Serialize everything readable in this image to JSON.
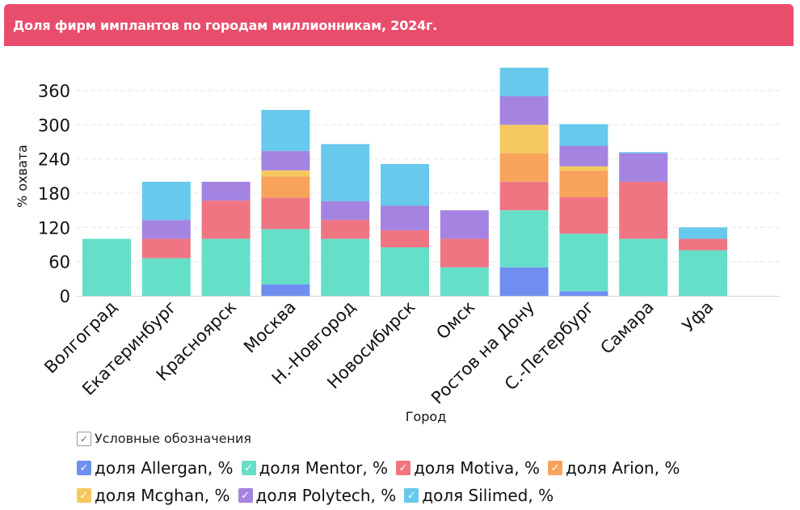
{
  "header": {
    "title": "Доля фирм имплантов по городам миллионникам, 2024г."
  },
  "legend": {
    "title": "Условные обозначения",
    "check": "✓"
  },
  "chart_data": {
    "type": "bar",
    "stacked": true,
    "xlabel": "Город",
    "ylabel": "% охвата",
    "ylim": [
      0,
      400
    ],
    "yticks": [
      0,
      60,
      120,
      180,
      240,
      300,
      360
    ],
    "grid": true,
    "legend_position": "bottom",
    "categories": [
      "Волгоград",
      "Екатеринбург",
      "Красноярск",
      "Москва",
      "Н.-Новгород",
      "Новосибирск",
      "Омск",
      "Ростов на Дону",
      "С.-Петербург",
      "Самара",
      "Уфа"
    ],
    "series": [
      {
        "name": "доля Allergan, %",
        "color": "#6f8ef0",
        "values": [
          0,
          0,
          0,
          20,
          0,
          0,
          0,
          50,
          8,
          0,
          0
        ]
      },
      {
        "name": "доля Mentor, %",
        "color": "#66dfc9",
        "values": [
          100,
          66,
          100,
          97,
          100,
          85,
          50,
          100,
          101,
          100,
          80
        ]
      },
      {
        "name": "доля Motiva, %",
        "color": "#f07583",
        "values": [
          0,
          34,
          67,
          55,
          33,
          30,
          50,
          50,
          64,
          100,
          20
        ]
      },
      {
        "name": "доля Arion, %",
        "color": "#f7a35c",
        "values": [
          0,
          0,
          0,
          37,
          0,
          0,
          0,
          50,
          46,
          0,
          0
        ]
      },
      {
        "name": "доля Mcghan, %",
        "color": "#f5c85f",
        "values": [
          0,
          0,
          0,
          11,
          0,
          0,
          0,
          50,
          8,
          0,
          0
        ]
      },
      {
        "name": "доля Polytech, %",
        "color": "#a583e0",
        "values": [
          0,
          33,
          33,
          34,
          33,
          43,
          50,
          50,
          36,
          50,
          0
        ]
      },
      {
        "name": "доля Silimed, %",
        "color": "#67c9ec",
        "values": [
          0,
          67,
          0,
          72,
          100,
          73,
          0,
          50,
          38,
          2,
          20
        ]
      }
    ]
  }
}
